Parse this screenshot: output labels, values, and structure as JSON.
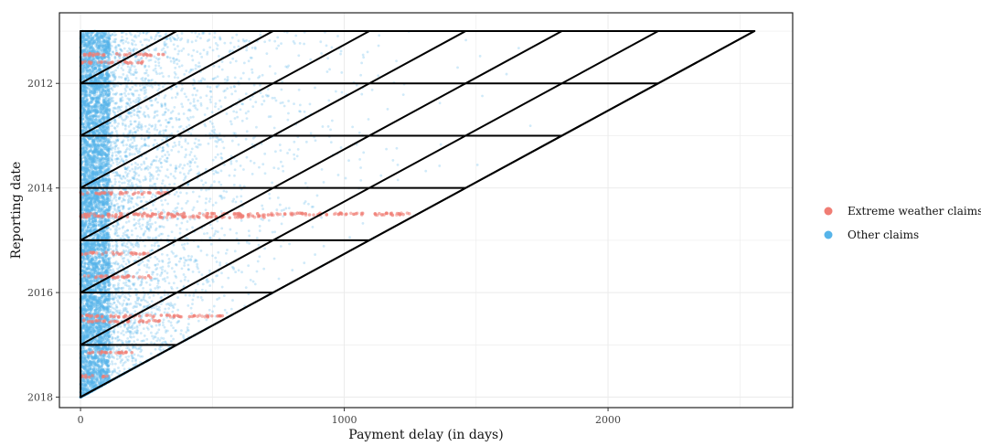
{
  "chart_data": {
    "type": "scatter",
    "xlabel": "Payment delay (in days)",
    "ylabel": "Reporting date",
    "xlim": [
      -80,
      2700
    ],
    "ylim": [
      2018.2,
      2010.65
    ],
    "y_reversed": true,
    "grid": true,
    "legend_position": "right",
    "x_ticks": [
      0,
      1000,
      2000
    ],
    "x_tick_labels": [
      "0",
      "1000",
      "2000"
    ],
    "y_ticks": [
      2012,
      2014,
      2016,
      2018
    ],
    "y_tick_labels": [
      "2012",
      "2014",
      "2016",
      "2018"
    ],
    "series": [
      {
        "name": "Extreme weather claims",
        "color": "#f07d74",
        "sample_points": [
          {
            "x": 20,
            "y": 2011.55
          },
          {
            "x": 120,
            "y": 2011.6
          },
          {
            "x": 260,
            "y": 2011.55
          },
          {
            "x": 40,
            "y": 2014.1
          },
          {
            "x": 180,
            "y": 2014.1
          },
          {
            "x": 330,
            "y": 2014.1
          },
          {
            "x": 60,
            "y": 2014.5
          },
          {
            "x": 200,
            "y": 2014.5
          },
          {
            "x": 400,
            "y": 2014.5
          },
          {
            "x": 700,
            "y": 2014.5
          },
          {
            "x": 1000,
            "y": 2014.5
          },
          {
            "x": 1250,
            "y": 2014.5
          },
          {
            "x": 30,
            "y": 2015.25
          },
          {
            "x": 200,
            "y": 2015.25
          },
          {
            "x": 90,
            "y": 2015.7
          },
          {
            "x": 250,
            "y": 2015.7
          },
          {
            "x": 30,
            "y": 2016.5
          },
          {
            "x": 150,
            "y": 2016.45
          },
          {
            "x": 330,
            "y": 2016.45
          },
          {
            "x": 520,
            "y": 2016.45
          },
          {
            "x": 60,
            "y": 2017.15
          }
        ]
      },
      {
        "name": "Other claims",
        "color": "#56b4e9",
        "sample_points": [
          {
            "x": 10,
            "y": 2011.0
          },
          {
            "x": 150,
            "y": 2011.2
          },
          {
            "x": 600,
            "y": 2011.4
          },
          {
            "x": 1100,
            "y": 2011.3
          },
          {
            "x": 1700,
            "y": 2011.5
          },
          {
            "x": 2300,
            "y": 2011.1
          },
          {
            "x": 50,
            "y": 2012.5
          },
          {
            "x": 400,
            "y": 2012.6
          },
          {
            "x": 1200,
            "y": 2012.8
          },
          {
            "x": 1900,
            "y": 2012.4
          },
          {
            "x": 80,
            "y": 2013.5
          },
          {
            "x": 800,
            "y": 2013.6
          },
          {
            "x": 1500,
            "y": 2013.4
          },
          {
            "x": 100,
            "y": 2015.0
          },
          {
            "x": 600,
            "y": 2015.2
          },
          {
            "x": 200,
            "y": 2016.8
          },
          {
            "x": 40,
            "y": 2017.6
          },
          {
            "x": 300,
            "y": 2017.0
          }
        ]
      }
    ],
    "triangle_grid": {
      "origin_days": 0,
      "start_year": 2011,
      "end_year": 2018,
      "max_delay_days": 2555,
      "period_days": 365
    }
  }
}
